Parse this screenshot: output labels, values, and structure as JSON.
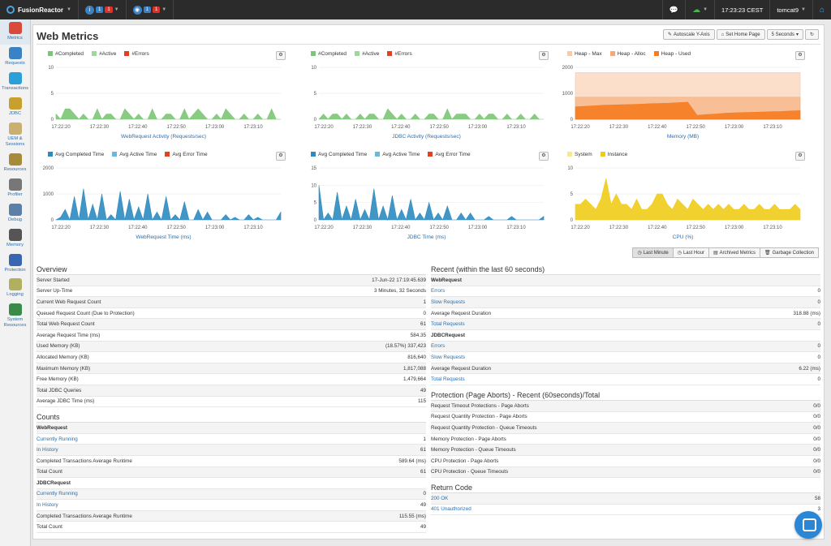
{
  "topbar": {
    "brand": "FusionReactor",
    "notif1": {
      "a": "1",
      "b": "1"
    },
    "notif2": {
      "a": "1",
      "b": "1"
    },
    "time": "17:23:23 CEST",
    "server": "tomcat9"
  },
  "sidebar": [
    {
      "label": "Metrics",
      "icon": "metrics-icon"
    },
    {
      "label": "Requests",
      "icon": "requests-icon"
    },
    {
      "label": "Transactions",
      "icon": "transactions-icon"
    },
    {
      "label": "JDBC",
      "icon": "jdbc-icon"
    },
    {
      "label": "UEM & Sessions",
      "icon": "uem-icon"
    },
    {
      "label": "Resources",
      "icon": "resources-icon"
    },
    {
      "label": "Profiler",
      "icon": "profiler-icon"
    },
    {
      "label": "Debug",
      "icon": "debug-icon"
    },
    {
      "label": "Memory",
      "icon": "memory-icon"
    },
    {
      "label": "Protection",
      "icon": "protection-icon"
    },
    {
      "label": "Logging",
      "icon": "logging-icon"
    },
    {
      "label": "System Resources",
      "icon": "system-resources-icon"
    }
  ],
  "page": {
    "title": "Web Metrics",
    "autoscale": "Autoscale Y-Axis",
    "sethome": "Set Home Page",
    "interval": "5 Seconds"
  },
  "chart_data": [
    {
      "type": "area",
      "title": "WebRequest Activity (Requests/sec)",
      "legend": [
        "#Completed",
        "#Active",
        "#Errors"
      ],
      "colors": [
        "#7cc576",
        "#9fd89a",
        "#e4401f"
      ],
      "yticks": [
        "10",
        "5",
        "0"
      ],
      "ylim": [
        0,
        10
      ],
      "xticks": [
        "17:22:20",
        "17:22:30",
        "17:22:40",
        "17:22:50",
        "17:23:00",
        "17:23:10"
      ],
      "series": [
        {
          "name": "#Completed",
          "values": [
            1,
            0,
            2,
            2,
            1,
            0,
            1,
            0,
            0,
            2,
            0,
            1,
            1,
            0,
            0,
            2,
            1,
            0,
            1,
            0,
            0,
            2,
            0,
            0,
            1,
            1,
            0,
            0,
            2,
            0,
            1,
            2,
            1,
            0,
            0,
            1,
            0,
            2,
            1,
            0,
            0,
            1,
            0,
            0,
            1,
            0,
            0,
            2,
            0,
            0
          ]
        }
      ]
    },
    {
      "type": "area",
      "title": "JDBC Activity (Requests/sec)",
      "legend": [
        "#Completed",
        "#Active",
        "#Errors"
      ],
      "colors": [
        "#7cc576",
        "#9fd89a",
        "#e4401f"
      ],
      "yticks": [
        "10",
        "5",
        "0"
      ],
      "ylim": [
        0,
        10
      ],
      "xticks": [
        "17:22:20",
        "17:22:30",
        "17:22:40",
        "17:22:50",
        "17:23:00",
        "17:23:10"
      ],
      "series": [
        {
          "name": "#Completed",
          "values": [
            0,
            1,
            0,
            1,
            1,
            0,
            1,
            0,
            0,
            1,
            0,
            1,
            1,
            0,
            0,
            2,
            1,
            0,
            1,
            0,
            0,
            1,
            0,
            0,
            1,
            1,
            0,
            0,
            2,
            0,
            1,
            1,
            1,
            0,
            0,
            1,
            0,
            1,
            1,
            0,
            0,
            1,
            0,
            0,
            1,
            0,
            0,
            1,
            0,
            0
          ]
        }
      ]
    },
    {
      "type": "area",
      "title": "Memory (MB)",
      "legend": [
        "Heap - Max",
        "Heap - Alloc",
        "Heap - Used"
      ],
      "colors": [
        "#f9c9a8",
        "#f7a873",
        "#f57c20"
      ],
      "yticks": [
        "2000",
        "1000",
        "0"
      ],
      "ylim": [
        0,
        2000
      ],
      "xticks": [
        "17:22:20",
        "17:22:30",
        "17:22:40",
        "17:22:50",
        "17:23:00",
        "17:23:10"
      ],
      "series": [
        {
          "name": "Heap - Max",
          "values": [
            1800,
            1800,
            1800,
            1800,
            1800,
            1800,
            1800,
            1800,
            1800,
            1800,
            1800,
            1800,
            1800,
            1800,
            1800,
            1800,
            1800,
            1800,
            1800,
            1800,
            1800,
            1800,
            1800,
            1800,
            1800
          ]
        },
        {
          "name": "Heap - Alloc",
          "values": [
            850,
            850,
            850,
            850,
            850,
            850,
            850,
            850,
            850,
            850,
            850,
            850,
            850,
            850,
            850,
            850,
            850,
            850,
            850,
            850,
            850,
            850,
            850,
            850,
            850
          ]
        },
        {
          "name": "Heap - Used",
          "values": [
            480,
            500,
            520,
            540,
            550,
            560,
            570,
            580,
            600,
            610,
            620,
            640,
            660,
            150,
            180,
            200,
            230,
            250,
            260,
            270,
            280,
            290,
            300,
            320,
            330
          ]
        }
      ]
    },
    {
      "type": "area",
      "title": "WebRequest Time (ms)",
      "legend": [
        "Avg Completed Time",
        "Avg Active Time",
        "Avg Error Time"
      ],
      "colors": [
        "#2d8bc0",
        "#6db6dc",
        "#e4401f"
      ],
      "yticks": [
        "2000",
        "1000",
        "0"
      ],
      "ylim": [
        0,
        2000
      ],
      "xticks": [
        "17:22:20",
        "17:22:30",
        "17:22:40",
        "17:22:50",
        "17:23:00",
        "17:23:10"
      ],
      "series": [
        {
          "name": "Avg Completed Time",
          "values": [
            0,
            100,
            400,
            0,
            900,
            0,
            1200,
            0,
            600,
            0,
            1000,
            0,
            200,
            0,
            1100,
            0,
            800,
            0,
            500,
            0,
            1000,
            0,
            300,
            0,
            900,
            0,
            200,
            0,
            700,
            0,
            0,
            400,
            0,
            300,
            0,
            0,
            0,
            200,
            0,
            100,
            0,
            0,
            200,
            0,
            100,
            0,
            0,
            0,
            0,
            300
          ]
        }
      ]
    },
    {
      "type": "area",
      "title": "JDBC Time (ms)",
      "legend": [
        "Avg Completed Time",
        "Avg Active Time",
        "Avg Error Time"
      ],
      "colors": [
        "#2d8bc0",
        "#6db6dc",
        "#e4401f"
      ],
      "yticks": [
        "15",
        "10",
        "5",
        "0"
      ],
      "ylim": [
        0,
        15
      ],
      "xticks": [
        "17:22:20",
        "17:22:30",
        "17:22:40",
        "17:22:50",
        "17:23:00",
        "17:23:10"
      ],
      "series": [
        {
          "name": "Avg Completed Time",
          "values": [
            10,
            0,
            2,
            0,
            8,
            0,
            4,
            0,
            6,
            0,
            3,
            0,
            9,
            0,
            4,
            0,
            7,
            0,
            3,
            0,
            6,
            0,
            2,
            0,
            5,
            0,
            2,
            0,
            4,
            0,
            0,
            2,
            0,
            2,
            0,
            0,
            0,
            1,
            0,
            0,
            0,
            0,
            1,
            0,
            0,
            0,
            0,
            0,
            0,
            1
          ]
        }
      ]
    },
    {
      "type": "area",
      "title": "CPU (%)",
      "legend": [
        "System",
        "Instance"
      ],
      "colors": [
        "#f7e88a",
        "#f0cc1a"
      ],
      "yticks": [
        "10",
        "5",
        "0"
      ],
      "ylim": [
        0,
        10
      ],
      "xticks": [
        "17:22:20",
        "17:22:30",
        "17:22:40",
        "17:22:50",
        "17:23:00",
        "17:23:10"
      ],
      "series": [
        {
          "name": "Instance",
          "values": [
            3,
            3,
            4,
            3,
            2,
            4,
            8,
            3,
            5,
            3,
            3,
            2,
            4,
            2,
            2,
            3,
            5,
            5,
            3,
            2,
            4,
            3,
            2,
            4,
            3,
            2,
            3,
            2,
            3,
            2,
            3,
            2,
            2,
            3,
            2,
            2,
            3,
            2,
            2,
            3,
            2,
            2,
            2,
            3,
            2
          ]
        }
      ]
    }
  ],
  "range": [
    "Last Minute",
    "Last Hour",
    "Archived Metrics",
    "Garbage Collection"
  ],
  "overview": {
    "title": "Overview",
    "rows": [
      [
        "Server Started",
        "17-Jun-22 17:19:45.639"
      ],
      [
        "Server Up-Time",
        "3 Minutes, 32 Seconds"
      ],
      [
        "Current Web Request Count",
        "1"
      ],
      [
        "Queued Request Count (Due to Protection)",
        "0"
      ],
      [
        "Total Web Request Count",
        "61"
      ],
      [
        "Average Request Time (ms)",
        "584.35"
      ],
      [
        "Used Memory (KB)",
        "(18.57%) 337,423"
      ],
      [
        "Allocated Memory (KB)",
        "816,640"
      ],
      [
        "Maximum Memory (KB)",
        "1,817,088"
      ],
      [
        "Free Memory (KB)",
        "1,479,664"
      ],
      [
        "Total JDBC Queries",
        "49"
      ],
      [
        "Average JDBC Time (ms)",
        "115"
      ]
    ]
  },
  "counts": {
    "title": "Counts",
    "rows": [
      [
        "WebRequest",
        "",
        "head"
      ],
      [
        "Currently Running",
        "1",
        "link"
      ],
      [
        "In History",
        "61",
        "link"
      ],
      [
        "Completed Transactions Average Runtime",
        "589.64 (ms)",
        ""
      ],
      [
        "Total Count",
        "61",
        ""
      ],
      [
        "JDBCRequest",
        "",
        "head"
      ],
      [
        "Currently Running",
        "0",
        "link"
      ],
      [
        "In History",
        "49",
        "link"
      ],
      [
        "Completed Transactions Average Runtime",
        "115.55 (ms)",
        ""
      ],
      [
        "Total Count",
        "49",
        ""
      ]
    ]
  },
  "recent": {
    "title": "Recent (within the last 60 seconds)",
    "rows": [
      [
        "WebRequest",
        "",
        "head"
      ],
      [
        "Errors",
        "0",
        "link"
      ],
      [
        "Slow Requests",
        "0",
        "link"
      ],
      [
        "Average Request Duration",
        "318.88 (ms)",
        ""
      ],
      [
        "Total Requests",
        "0",
        "link"
      ],
      [
        "JDBCRequest",
        "",
        "head"
      ],
      [
        "Errors",
        "0",
        "link"
      ],
      [
        "Slow Requests",
        "0",
        "link"
      ],
      [
        "Average Request Duration",
        "6.22 (ms)",
        ""
      ],
      [
        "Total Requests",
        "0",
        "link"
      ]
    ]
  },
  "protection": {
    "title": "Protection (Page Aborts) - Recent (60seconds)/Total",
    "rows": [
      [
        "Request Timeout Protections - Page Aborts",
        "0/0"
      ],
      [
        "Request Quantity Protection - Page Aborts",
        "0/0"
      ],
      [
        "Request Quantity Protection - Queue Timeouts",
        "0/0"
      ],
      [
        "Memory Protection - Page Aborts",
        "0/0"
      ],
      [
        "Memory Protection - Queue Timeouts",
        "0/0"
      ],
      [
        "CPU Protection - Page Aborts",
        "0/0"
      ],
      [
        "CPU Protection - Queue Timeouts",
        "0/0"
      ]
    ]
  },
  "returncode": {
    "title": "Return Code",
    "rows": [
      [
        "200 OK",
        "58",
        "link"
      ],
      [
        "401 Unauthorized",
        "3",
        "link"
      ]
    ]
  }
}
